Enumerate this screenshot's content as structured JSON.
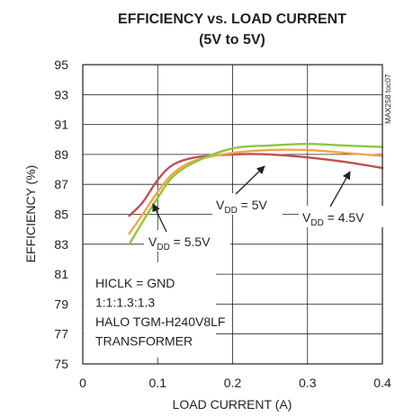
{
  "chart_data": {
    "type": "line",
    "title": "EFFICIENCY vs. LOAD CURRENT",
    "subtitle": "(5V to 5V)",
    "xlabel": "LOAD CURRENT (A)",
    "ylabel": "EFFICIENCY (%)",
    "xlim": [
      0,
      0.4
    ],
    "ylim": [
      75,
      95
    ],
    "xticks": [
      "0",
      "0.1",
      "0.2",
      "0.3",
      "0.4"
    ],
    "yticks": [
      "75",
      "77",
      "79",
      "81",
      "83",
      "85",
      "87",
      "89",
      "91",
      "93",
      "95"
    ],
    "grid": true,
    "figure_id": "MAX258 toc07",
    "series": [
      {
        "name": "VDD = 4.5V",
        "color": "#c0504d",
        "x": [
          0.062,
          0.08,
          0.1,
          0.12,
          0.15,
          0.2,
          0.25,
          0.3,
          0.35,
          0.4
        ],
        "y": [
          84.9,
          85.8,
          87.3,
          88.3,
          88.8,
          89.0,
          89.0,
          88.8,
          88.5,
          88.1
        ]
      },
      {
        "name": "VDD = 5V",
        "color": "#f7a541",
        "x": [
          0.062,
          0.08,
          0.1,
          0.12,
          0.15,
          0.2,
          0.25,
          0.3,
          0.35,
          0.4
        ],
        "y": [
          83.7,
          85.0,
          86.5,
          87.7,
          88.6,
          89.1,
          89.3,
          89.3,
          89.1,
          88.9
        ]
      },
      {
        "name": "VDD = 5.5V",
        "color": "#8dc63f",
        "x": [
          0.062,
          0.08,
          0.1,
          0.12,
          0.15,
          0.2,
          0.25,
          0.3,
          0.35,
          0.4
        ],
        "y": [
          83.0,
          84.5,
          86.1,
          87.5,
          88.5,
          89.4,
          89.6,
          89.7,
          89.6,
          89.5
        ]
      }
    ],
    "callouts": [
      {
        "prefix": "V",
        "sub": "DD",
        "suffix": " = 5.5V",
        "series": "VDD = 5.5V"
      },
      {
        "prefix": "V",
        "sub": "DD",
        "suffix": " = 5V",
        "series": "VDD = 5V"
      },
      {
        "prefix": "V",
        "sub": "DD",
        "suffix": " = 4.5V",
        "series": "VDD = 4.5V"
      }
    ],
    "annotation_lines": [
      "HICLK = GND",
      "1:1:1.3:1.3",
      "HALO TGM-H240V8LF",
      "TRANSFORMER"
    ]
  }
}
